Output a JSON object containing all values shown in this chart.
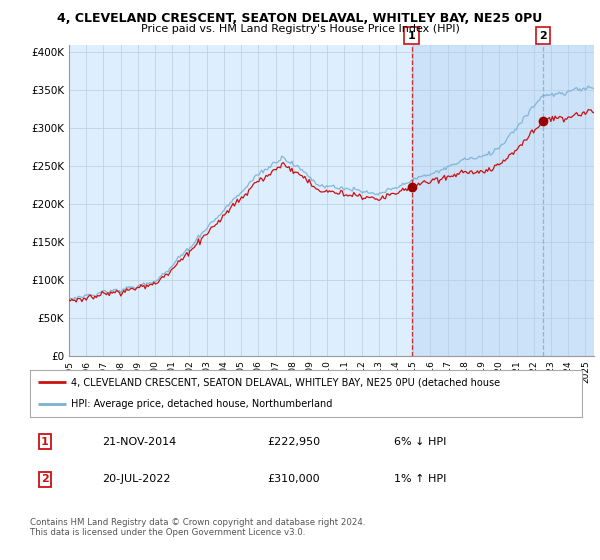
{
  "title1": "4, CLEVELAND CRESCENT, SEATON DELAVAL, WHITLEY BAY, NE25 0PU",
  "title2": "Price paid vs. HM Land Registry's House Price Index (HPI)",
  "ytick_labels": [
    "£0",
    "£50K",
    "£100K",
    "£150K",
    "£200K",
    "£250K",
    "£300K",
    "£350K",
    "£400K"
  ],
  "yticks": [
    0,
    50000,
    100000,
    150000,
    200000,
    250000,
    300000,
    350000,
    400000
  ],
  "ylim": [
    0,
    410000
  ],
  "legend_line1": "4, CLEVELAND CRESCENT, SEATON DELAVAL, WHITLEY BAY, NE25 0PU (detached house",
  "legend_line2": "HPI: Average price, detached house, Northumberland",
  "sale1_date": "21-NOV-2014",
  "sale1_price": "£222,950",
  "sale1_hpi": "6% ↓ HPI",
  "sale2_date": "20-JUL-2022",
  "sale2_price": "£310,000",
  "sale2_hpi": "1% ↑ HPI",
  "footer": "Contains HM Land Registry data © Crown copyright and database right 2024.\nThis data is licensed under the Open Government Licence v3.0.",
  "hpi_color": "#7ab0d4",
  "price_color": "#cc1111",
  "vline1_color": "#cc1111",
  "vline2_color": "#7ab0d4",
  "background_color": "#ddeeff",
  "shade_color": "#ccddf0",
  "plot_bg": "#ffffff",
  "grid_color": "#bbccdd",
  "sale1_x": 2014.9,
  "sale1_y": 222950,
  "sale2_x": 2022.55,
  "sale2_y": 310000,
  "xmin": 1995,
  "xmax": 2025.5
}
